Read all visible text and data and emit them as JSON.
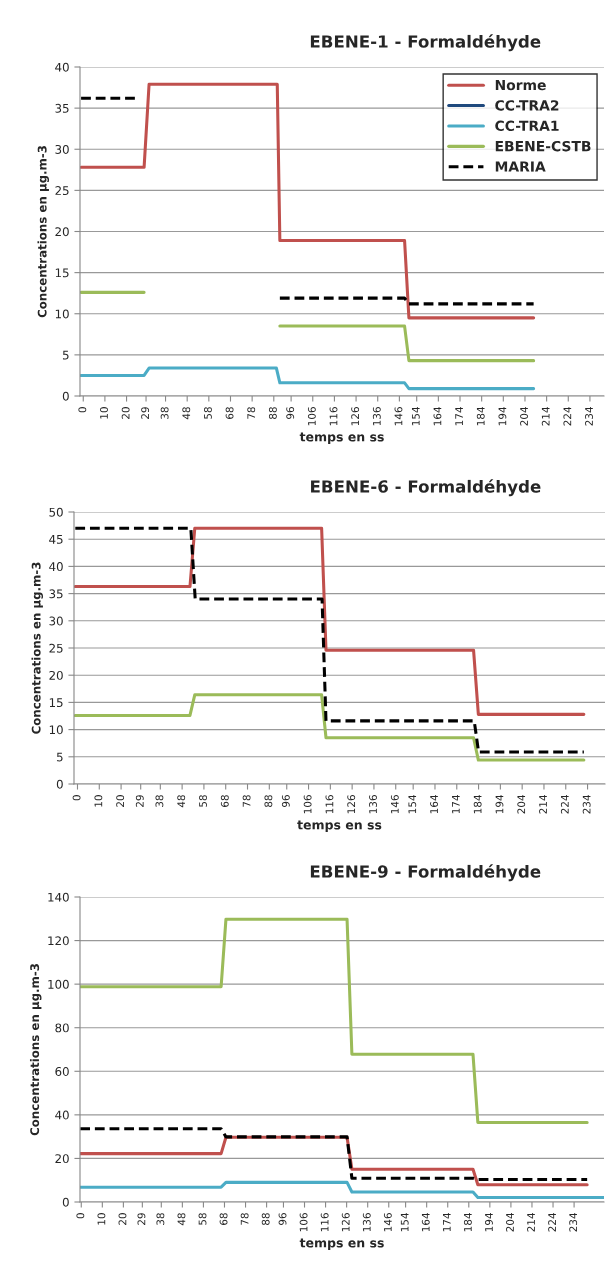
{
  "chart_data": [
    {
      "type": "line",
      "title": "EBENE-1 - Formaldéhyde",
      "xlabel": "temps en ss",
      "ylabel": "Concentrations en µg.m-3",
      "xlim": [
        -1.5,
        240.5
      ],
      "ylim": [
        0,
        40
      ],
      "yticks": [
        0,
        5,
        10,
        15,
        20,
        25,
        30,
        35,
        40
      ],
      "xticks": [
        0,
        10,
        20,
        29,
        38,
        48,
        58,
        68,
        78,
        88,
        96,
        106,
        116,
        126,
        136,
        146,
        154,
        164,
        174,
        184,
        194,
        204,
        214,
        224,
        234
      ],
      "grid": "y",
      "legend": "top right",
      "series": [
        {
          "name": "Norme",
          "color": "#c0504d",
          "x": [
            -1,
            28.1,
            30.4,
            89.6,
            90.8,
            148.4,
            150.4,
            208
          ],
          "values": [
            27.8,
            27.8,
            37.9,
            37.9,
            18.9,
            18.9,
            9.5,
            9.5
          ]
        },
        {
          "name": "CC-TRA2",
          "color": "#1f497d"
        },
        {
          "name": "CC-TRA1",
          "color": "#4bacc6",
          "x": [
            -1,
            28.1,
            30.4,
            89.2,
            90.8,
            148.4,
            150.4,
            208
          ],
          "values": [
            2.5,
            2.5,
            3.4,
            3.4,
            1.6,
            1.6,
            0.9,
            0.9
          ]
        },
        {
          "name": "EBENE-CSTB",
          "color": "#9bbb59",
          "x": [
            -1,
            28.1,
            30.4,
            89.2,
            90.8,
            148.4,
            150.4,
            208
          ],
          "values": [
            12.6,
            12.6,
            null,
            null,
            8.5,
            8.5,
            4.3,
            4.3
          ]
        },
        {
          "name": "MARIA",
          "color": "#000000",
          "line_style": "dashed",
          "x": [
            -1,
            25.4,
            48,
            90.8,
            148.4,
            150.4,
            208
          ],
          "values": [
            36.2,
            36.2,
            null,
            11.9,
            11.9,
            11.2,
            11.2
          ]
        }
      ]
    },
    {
      "type": "line",
      "title": "EBENE-6 - Formaldéhyde",
      "xlabel": "temps en ss",
      "ylabel": "Concentrations en µg.m-3",
      "xlim": [
        -1.6,
        242
      ],
      "ylim": [
        0,
        50
      ],
      "yticks": [
        0,
        5,
        10,
        15,
        20,
        25,
        30,
        35,
        40,
        45,
        50
      ],
      "xticks": [
        0,
        10,
        20,
        29,
        38,
        48,
        58,
        68,
        78,
        88,
        96,
        106,
        116,
        126,
        136,
        146,
        154,
        164,
        174,
        184,
        194,
        204,
        214,
        224,
        234
      ],
      "grid": "y",
      "series": [
        {
          "color": "#c0504d",
          "x": [
            -1,
            51.6,
            53.8,
            112,
            114,
            181.7,
            183.9,
            232.3
          ],
          "values": [
            36.3,
            36.3,
            47,
            47,
            24.6,
            24.6,
            12.8,
            12.8
          ]
        },
        {
          "color": "#9bbb59",
          "x": [
            -1,
            51.6,
            53.8,
            112,
            114,
            181.7,
            183.9,
            232.3
          ],
          "values": [
            12.6,
            12.6,
            16.4,
            16.4,
            8.5,
            8.5,
            4.4,
            4.4
          ]
        },
        {
          "color": "#000000",
          "line_style": "dashed",
          "x": [
            -1,
            52,
            54,
            112.2,
            114,
            182,
            184,
            232.3
          ],
          "values": [
            47,
            47,
            34,
            34,
            11.6,
            11.6,
            5.9,
            5.9
          ]
        }
      ]
    },
    {
      "type": "line",
      "title": "EBENE-9 - Formaldéhyde",
      "xlabel": "temps en ss",
      "ylabel": "Concentrations en µg.m-3",
      "xlim": [
        -0.6,
        248.2
      ],
      "ylim": [
        0,
        140
      ],
      "yticks": [
        0,
        20,
        40,
        60,
        80,
        100,
        120,
        140
      ],
      "xticks": [
        0,
        10,
        20,
        29,
        38,
        48,
        58,
        68,
        78,
        88,
        96,
        106,
        116,
        126,
        136,
        146,
        154,
        164,
        174,
        184,
        194,
        204,
        214,
        224,
        234
      ],
      "grid": "y",
      "series": [
        {
          "color": "#9bbb59",
          "x": [
            -0.5,
            66.4,
            68.7,
            126.2,
            128.5,
            186,
            188.3,
            240.2
          ],
          "values": [
            98.8,
            98.8,
            129.8,
            129.8,
            67.8,
            67.8,
            36.5,
            36.5
          ]
        },
        {
          "color": "#c0504d",
          "x": [
            -0.5,
            66.4,
            68.7,
            126.2,
            128.5,
            186,
            188.3,
            240.2
          ],
          "values": [
            22.2,
            22.2,
            29.7,
            29.7,
            15,
            15,
            7.9,
            7.9
          ]
        },
        {
          "color": "#4bacc6",
          "x": [
            -0.5,
            66.4,
            68.7,
            126.2,
            128.5,
            186,
            188.3,
            248
          ],
          "values": [
            6.8,
            6.8,
            9,
            9,
            4.6,
            4.6,
            2.1,
            2.1
          ]
        },
        {
          "color": "#000000",
          "line_style": "dashed",
          "x": [
            -0.5,
            66.4,
            68.7,
            126.2,
            128.5,
            186,
            188.3,
            240.2
          ],
          "values": [
            33.6,
            33.6,
            29.9,
            29.9,
            10.9,
            10.9,
            10.3,
            10.3
          ]
        }
      ]
    }
  ]
}
